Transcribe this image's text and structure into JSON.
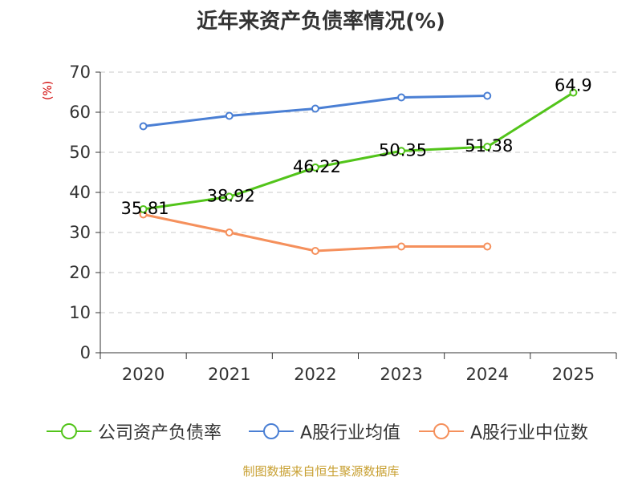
{
  "chart_data": {
    "type": "line",
    "title": "近年来资产负债率情况(%)",
    "ylabel": "(%)",
    "xlabel": "",
    "categories": [
      "2020",
      "2021",
      "2022",
      "2023",
      "2024",
      "2025"
    ],
    "ylim": [
      0,
      70
    ],
    "yticks": [
      0,
      10,
      20,
      30,
      40,
      50,
      60,
      70
    ],
    "grid": true,
    "legend_position": "bottom",
    "series": [
      {
        "name": "公司资产负债率",
        "color": "#52c41a",
        "values": [
          35.81,
          38.92,
          46.22,
          50.35,
          51.38,
          64.9
        ],
        "labels": [
          "35.81",
          "38.92",
          "46.22",
          "50.35",
          "51.38",
          "64.9"
        ]
      },
      {
        "name": "A股行业均值",
        "color": "#4a7fd4",
        "values": [
          56.5,
          59.1,
          60.9,
          63.7,
          64.1,
          null
        ]
      },
      {
        "name": "A股行业中位数",
        "color": "#f5905c",
        "values": [
          34.5,
          30.0,
          25.4,
          26.5,
          26.5,
          null
        ]
      }
    ]
  },
  "source_text": "制图数据来自恒生聚源数据库"
}
